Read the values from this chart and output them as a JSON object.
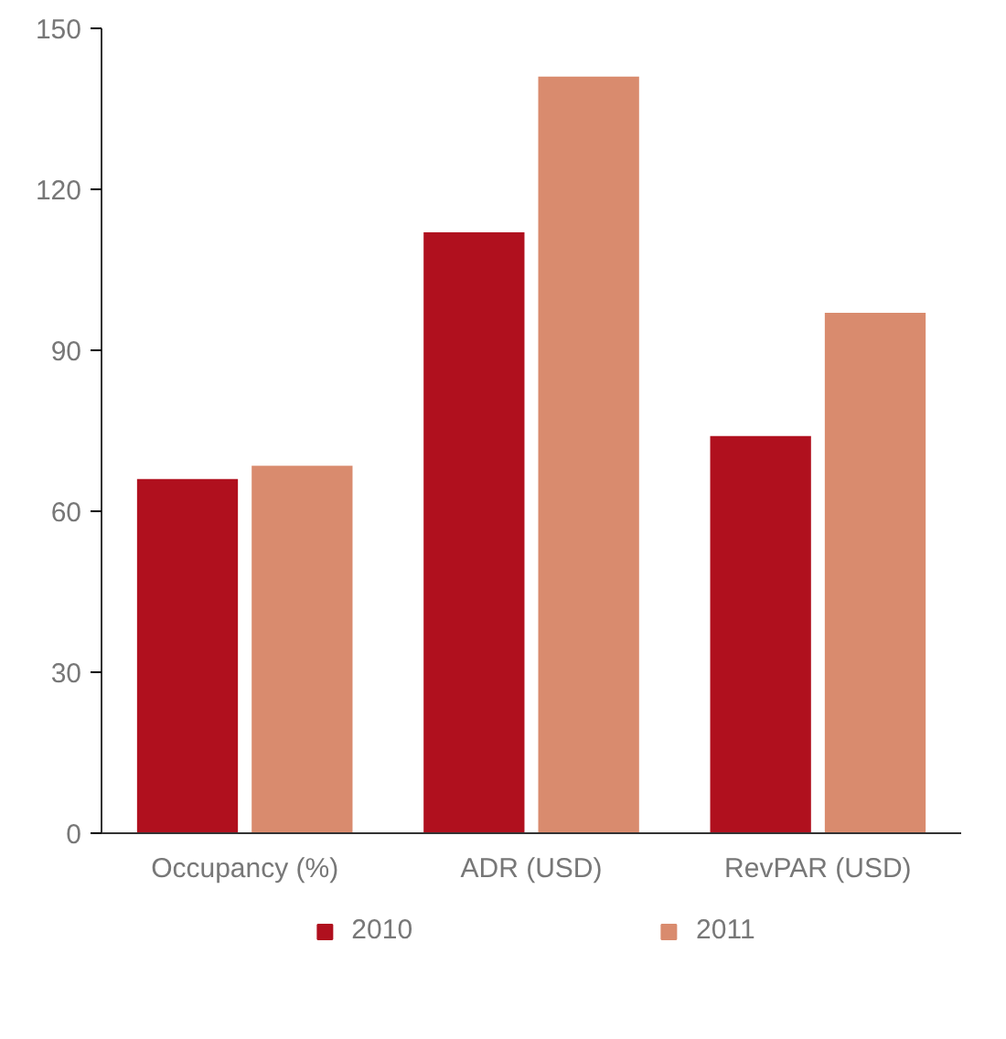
{
  "chart_data": {
    "type": "bar",
    "categories": [
      "Occupancy (%)",
      "ADR (USD)",
      "RevPAR (USD)"
    ],
    "series": [
      {
        "name": "2010",
        "color": "#b0101e",
        "values": [
          66,
          112,
          74
        ]
      },
      {
        "name": "2011",
        "color": "#d98b6e",
        "values": [
          68.5,
          141,
          97
        ]
      }
    ],
    "ylim": [
      0,
      150
    ],
    "yticks": [
      0,
      30,
      60,
      90,
      120,
      150
    ],
    "grid": false,
    "legend": "bottom"
  }
}
